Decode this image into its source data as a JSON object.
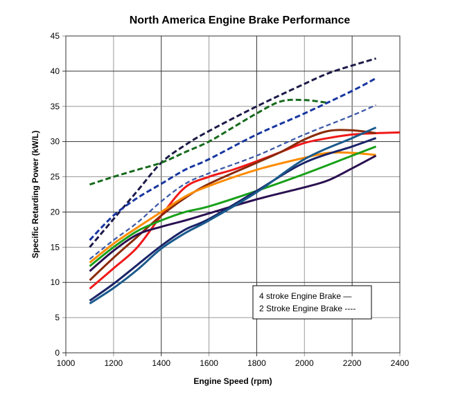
{
  "chart_data": {
    "type": "line",
    "title": "North America Engine Brake Performance",
    "xlabel": "Engine Speed (rpm)",
    "ylabel": "Specific Retarding Power (kW/L)",
    "xlim": [
      1000,
      2400
    ],
    "ylim": [
      0,
      45
    ],
    "xticks": [
      "1000",
      "1200",
      "1400",
      "1600",
      "1800",
      "2000",
      "2200",
      "2400"
    ],
    "yticks": [
      "0",
      "5",
      "10",
      "15",
      "20",
      "25",
      "30",
      "35",
      "40",
      "45"
    ],
    "grid": true,
    "legend": {
      "placement": "bottom-right",
      "entries": [
        "4 stroke Engine Brake —",
        "2 Stroke Engine Brake ----"
      ]
    },
    "series": [
      {
        "name": "2-stroke navy",
        "style": "dashed",
        "color": "#1c1a48",
        "x": [
          1100,
          1200,
          1300,
          1400,
          1500,
          1600,
          1800,
          2000,
          2100,
          2200,
          2300
        ],
        "y": [
          15,
          19,
          23,
          27,
          29.5,
          31.5,
          35,
          38.2,
          39.7,
          40.8,
          41.8
        ]
      },
      {
        "name": "2-stroke green",
        "style": "dashed",
        "color": "#176a1c",
        "x": [
          1100,
          1200,
          1300,
          1400,
          1500,
          1600,
          1700,
          1800,
          1900,
          2000,
          2100
        ],
        "y": [
          23.9,
          25,
          26,
          27,
          28.5,
          30,
          32,
          34,
          35.7,
          35.9,
          35.5
        ]
      },
      {
        "name": "2-stroke blue",
        "style": "dashed",
        "color": "#1836a0",
        "x": [
          1100,
          1200,
          1300,
          1400,
          1500,
          1600,
          1800,
          2000,
          2200,
          2300
        ],
        "y": [
          16,
          19.5,
          22,
          24,
          26,
          27.5,
          31,
          34,
          37.2,
          39
        ]
      },
      {
        "name": "2-stroke light blue",
        "style": "dashed-thin",
        "color": "#3d5aa8",
        "x": [
          1100,
          1200,
          1300,
          1400,
          1500,
          1600,
          1800,
          2000,
          2200,
          2300
        ],
        "y": [
          13.3,
          16,
          18.5,
          21.5,
          24,
          25.5,
          28,
          31,
          33.7,
          35.2
        ]
      },
      {
        "name": "4-stroke red",
        "style": "solid",
        "color": "#f01818",
        "x": [
          1100,
          1200,
          1300,
          1400,
          1500,
          1600,
          1700,
          1800,
          1900,
          2000,
          2100,
          2200,
          2300,
          2400
        ],
        "y": [
          9.1,
          12,
          15,
          19.5,
          23.5,
          25,
          26,
          27.2,
          28.5,
          29.8,
          30.5,
          31,
          31.2,
          31.3
        ]
      },
      {
        "name": "4-stroke brown",
        "style": "solid",
        "color": "#8a2a08",
        "x": [
          1100,
          1200,
          1300,
          1400,
          1500,
          1600,
          1800,
          1900,
          2000,
          2100,
          2200,
          2300
        ],
        "y": [
          10.3,
          13.5,
          16.5,
          19.5,
          22,
          24,
          27,
          28.5,
          30.3,
          31.5,
          31.6,
          31.2
        ]
      },
      {
        "name": "4-stroke orange",
        "style": "solid",
        "color": "#ff8c00",
        "x": [
          1100,
          1200,
          1300,
          1400,
          1500,
          1600,
          1800,
          2000,
          2100,
          2200,
          2300
        ],
        "y": [
          12.8,
          15.5,
          17.8,
          20,
          22.2,
          23.7,
          26,
          27.7,
          28.4,
          28.4,
          28.1
        ]
      },
      {
        "name": "4-stroke green",
        "style": "solid",
        "color": "#18a018",
        "x": [
          1100,
          1200,
          1300,
          1400,
          1500,
          1600,
          1800,
          2000,
          2200,
          2300
        ],
        "y": [
          12.3,
          15,
          17.3,
          18.8,
          20,
          20.8,
          23,
          25.4,
          28,
          29.3
        ]
      },
      {
        "name": "4-stroke purple",
        "style": "solid",
        "color": "#2a1050",
        "x": [
          1100,
          1200,
          1300,
          1400,
          1500,
          1600,
          1800,
          2000,
          2100,
          2200,
          2300
        ],
        "y": [
          11.6,
          14.5,
          16.8,
          17.9,
          18.8,
          19.8,
          21.8,
          23.5,
          24.5,
          26.2,
          28
        ]
      },
      {
        "name": "4-stroke navy",
        "style": "solid",
        "color": "#1a2468",
        "x": [
          1100,
          1200,
          1300,
          1400,
          1500,
          1600,
          1800,
          2000,
          2200,
          2300
        ],
        "y": [
          7.4,
          9.8,
          12.5,
          15.2,
          17.5,
          19,
          23,
          27,
          29.3,
          30.5
        ]
      },
      {
        "name": "4-stroke teal",
        "style": "solid",
        "color": "#1a5a8c",
        "x": [
          1100,
          1200,
          1300,
          1400,
          1500,
          1600,
          1800,
          2000,
          2200,
          2300
        ],
        "y": [
          7,
          9.2,
          11.8,
          14.8,
          17,
          18.8,
          22.8,
          27.5,
          30.5,
          32
        ]
      }
    ]
  }
}
